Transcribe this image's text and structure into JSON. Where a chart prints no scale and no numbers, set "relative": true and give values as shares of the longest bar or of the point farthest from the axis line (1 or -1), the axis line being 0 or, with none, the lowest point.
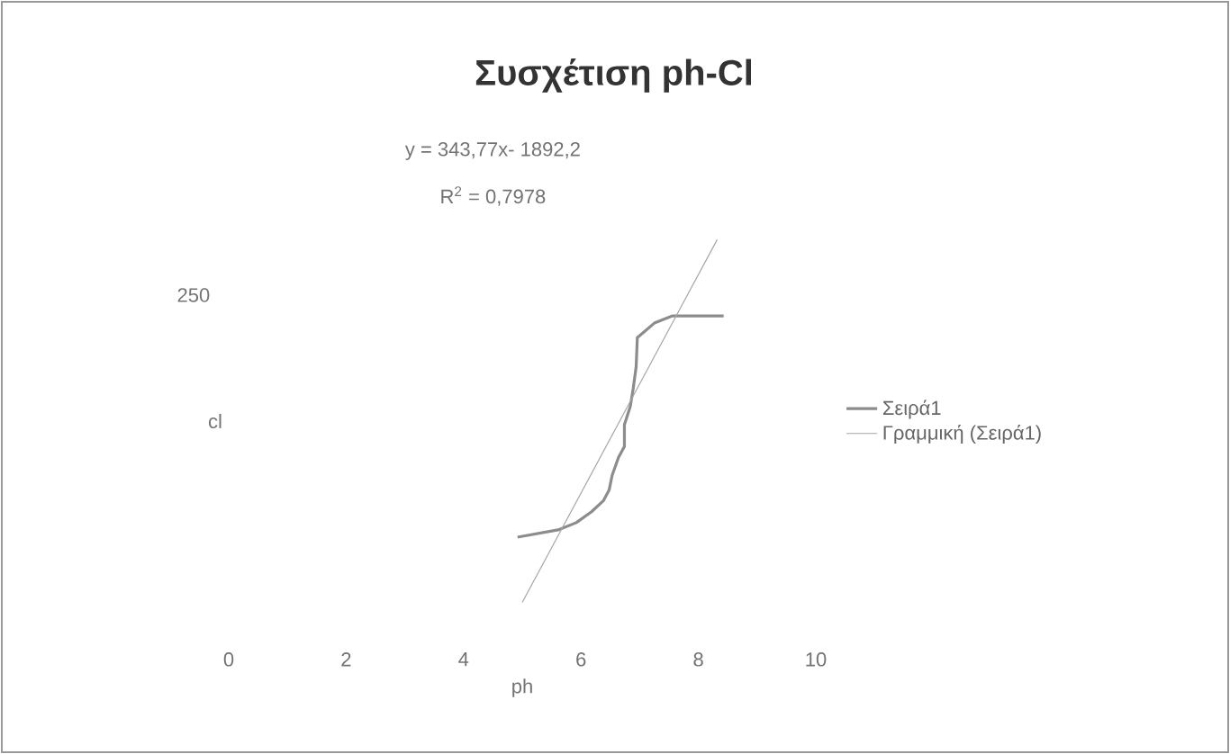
{
  "chart_data": {
    "type": "line",
    "title": "Συσχέτιση ph-Cl",
    "xlabel": "ph",
    "ylabel": "cl",
    "relative": true,
    "xlim": [
      0,
      10
    ],
    "xticks": [
      0,
      2,
      4,
      6,
      8,
      10
    ],
    "legend": "right",
    "marker": "none",
    "annotations": [
      "y = 343,77x- 1892,2",
      "R$^{2}$ = 0,7978",
      "250"
    ],
    "series": [
      {
        "name": "Σειρά1",
        "color": "#8c8c8c",
        "x": [
          4.92,
          5.61,
          5.92,
          6.18,
          6.38,
          6.48,
          6.53,
          6.64,
          6.74,
          6.74,
          6.84,
          6.89,
          6.94,
          6.96,
          7.25,
          7.56,
          8.43
        ],
        "values": [
          0.18,
          0.2,
          0.22,
          0.25,
          0.28,
          0.31,
          0.35,
          0.4,
          0.43,
          0.49,
          0.54,
          0.59,
          0.65,
          0.73,
          0.77,
          0.79,
          0.79
        ]
      },
      {
        "name": "Γραμμική (Σειρά1)",
        "color": "#a6a6a6",
        "type": "line",
        "line_style": "solid",
        "x": [
          5.0,
          8.32
        ],
        "values": [
          0,
          1
        ]
      }
    ]
  }
}
